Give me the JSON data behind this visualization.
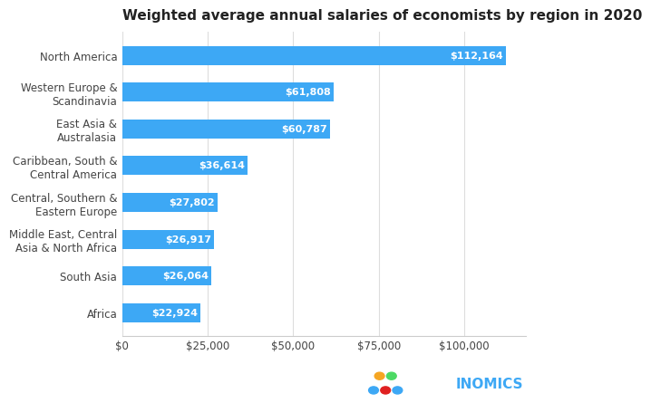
{
  "title": "Weighted average annual salaries of economists by region in 2020",
  "categories": [
    "North America",
    "Western Europe &\nScandinavia",
    "East Asia &\nAustralasia",
    "Caribbean, South &\nCentral America",
    "Central, Southern &\nEastern Europe",
    "Middle East, Central\nAsia & North Africa",
    "South Asia",
    "Africa"
  ],
  "values": [
    112164,
    61808,
    60787,
    36614,
    27802,
    26917,
    26064,
    22924
  ],
  "bar_color": "#3DA8F5",
  "label_color": "#FFFFFF",
  "title_fontsize": 11,
  "tick_label_fontsize": 8.5,
  "bar_label_fontsize": 8,
  "xlabel_ticks": [
    0,
    25000,
    50000,
    75000,
    100000
  ],
  "xlabel_tick_labels": [
    "$0",
    "$25,000",
    "$50,000",
    "$75,000",
    "$100,000"
  ],
  "xlim": [
    0,
    118000
  ],
  "background_color": "#FFFFFF",
  "inomics_text": "INOMICS",
  "inomics_text_color": "#3DA8F5",
  "inomics_dot_colors_top": [
    "#F5A623",
    "#4CD964"
  ],
  "inomics_dot_colors_bottom": [
    "#3DA8F5",
    "#E02020",
    "#3DA8F5"
  ]
}
